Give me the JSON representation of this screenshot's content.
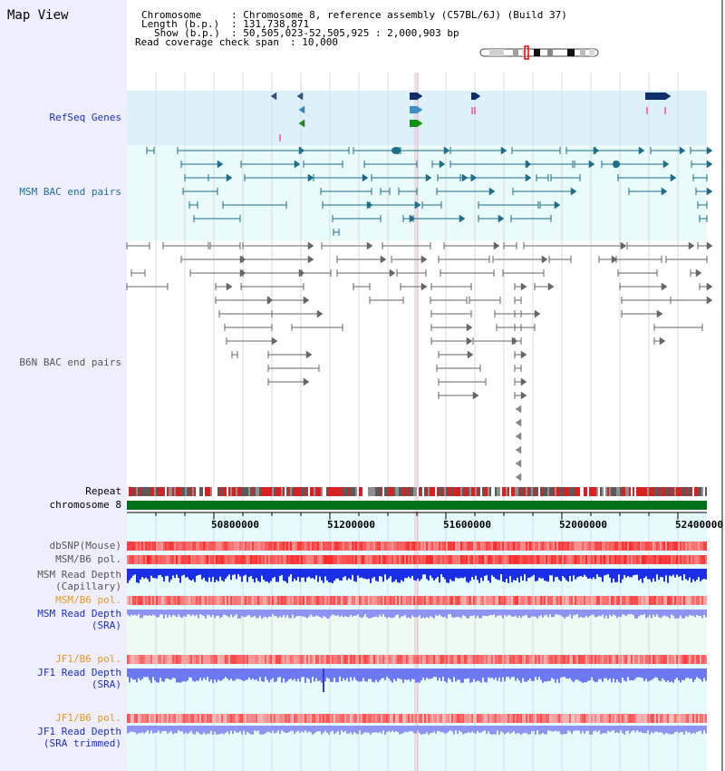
{
  "page": {
    "title": "Map View"
  },
  "header": {
    "chromosome_key": "Chromosome",
    "chromosome_value": ": Chromosome 8, reference assembly (C57BL/6J) (Build 37)",
    "length_key": "Length (b.p.)",
    "length_value": ": 131,738,871",
    "show_key": "Show (b.p.)",
    "show_value": ": 50,505,023-52,505,925 : 2,000,903 bp",
    "coverage_key": "Read coverage check span",
    "coverage_value": ": 10,000"
  },
  "tracks": {
    "refseq": "RefSeq Genes",
    "msm_bac": "MSM BAC end pairs",
    "b6n_bac": "B6N BAC end pairs",
    "repeat": "Repeat",
    "chromosome": "chromosome 8",
    "dbsnp": "dbSNP(Mouse)",
    "msm_b6_pol_1": "MSM/B6 pol.",
    "msm_read_depth_cap_1": "MSM Read Depth",
    "msm_read_depth_cap_2": "(Capillary)",
    "msm_b6_pol_2": "MSM/B6 pol.",
    "msm_read_depth_sra_1": "MSM Read Depth",
    "msm_read_depth_sra_2": "(SRA)",
    "jf1_b6_pol_1": "JF1/B6 pol.",
    "jf1_read_depth_sra_1": "JF1 Read Depth",
    "jf1_read_depth_sra_2": "(SRA)",
    "jf1_b6_pol_2": "JF1/B6 pol.",
    "jf1_read_depth_trim_1": "JF1 Read Depth",
    "jf1_read_depth_trim_2": "(SRA trimmed)"
  },
  "axis": {
    "ticks": [
      "50800000",
      "51200000",
      "51600000",
      "52000000",
      "52400000"
    ]
  },
  "colors": {
    "background_left": "#eeeeff",
    "refseq_bg": "#ddf1fb",
    "msm_bg": "#e9fbfb",
    "lower_bg": "#e6fbfb",
    "label_blue": "#1b2fcc",
    "label_teal": "#1e6f9a",
    "label_orange": "#e79a17",
    "msm_feature": "#1c6e89",
    "b6n_feature": "#666666",
    "chromosome_green": "#00701a"
  }
}
